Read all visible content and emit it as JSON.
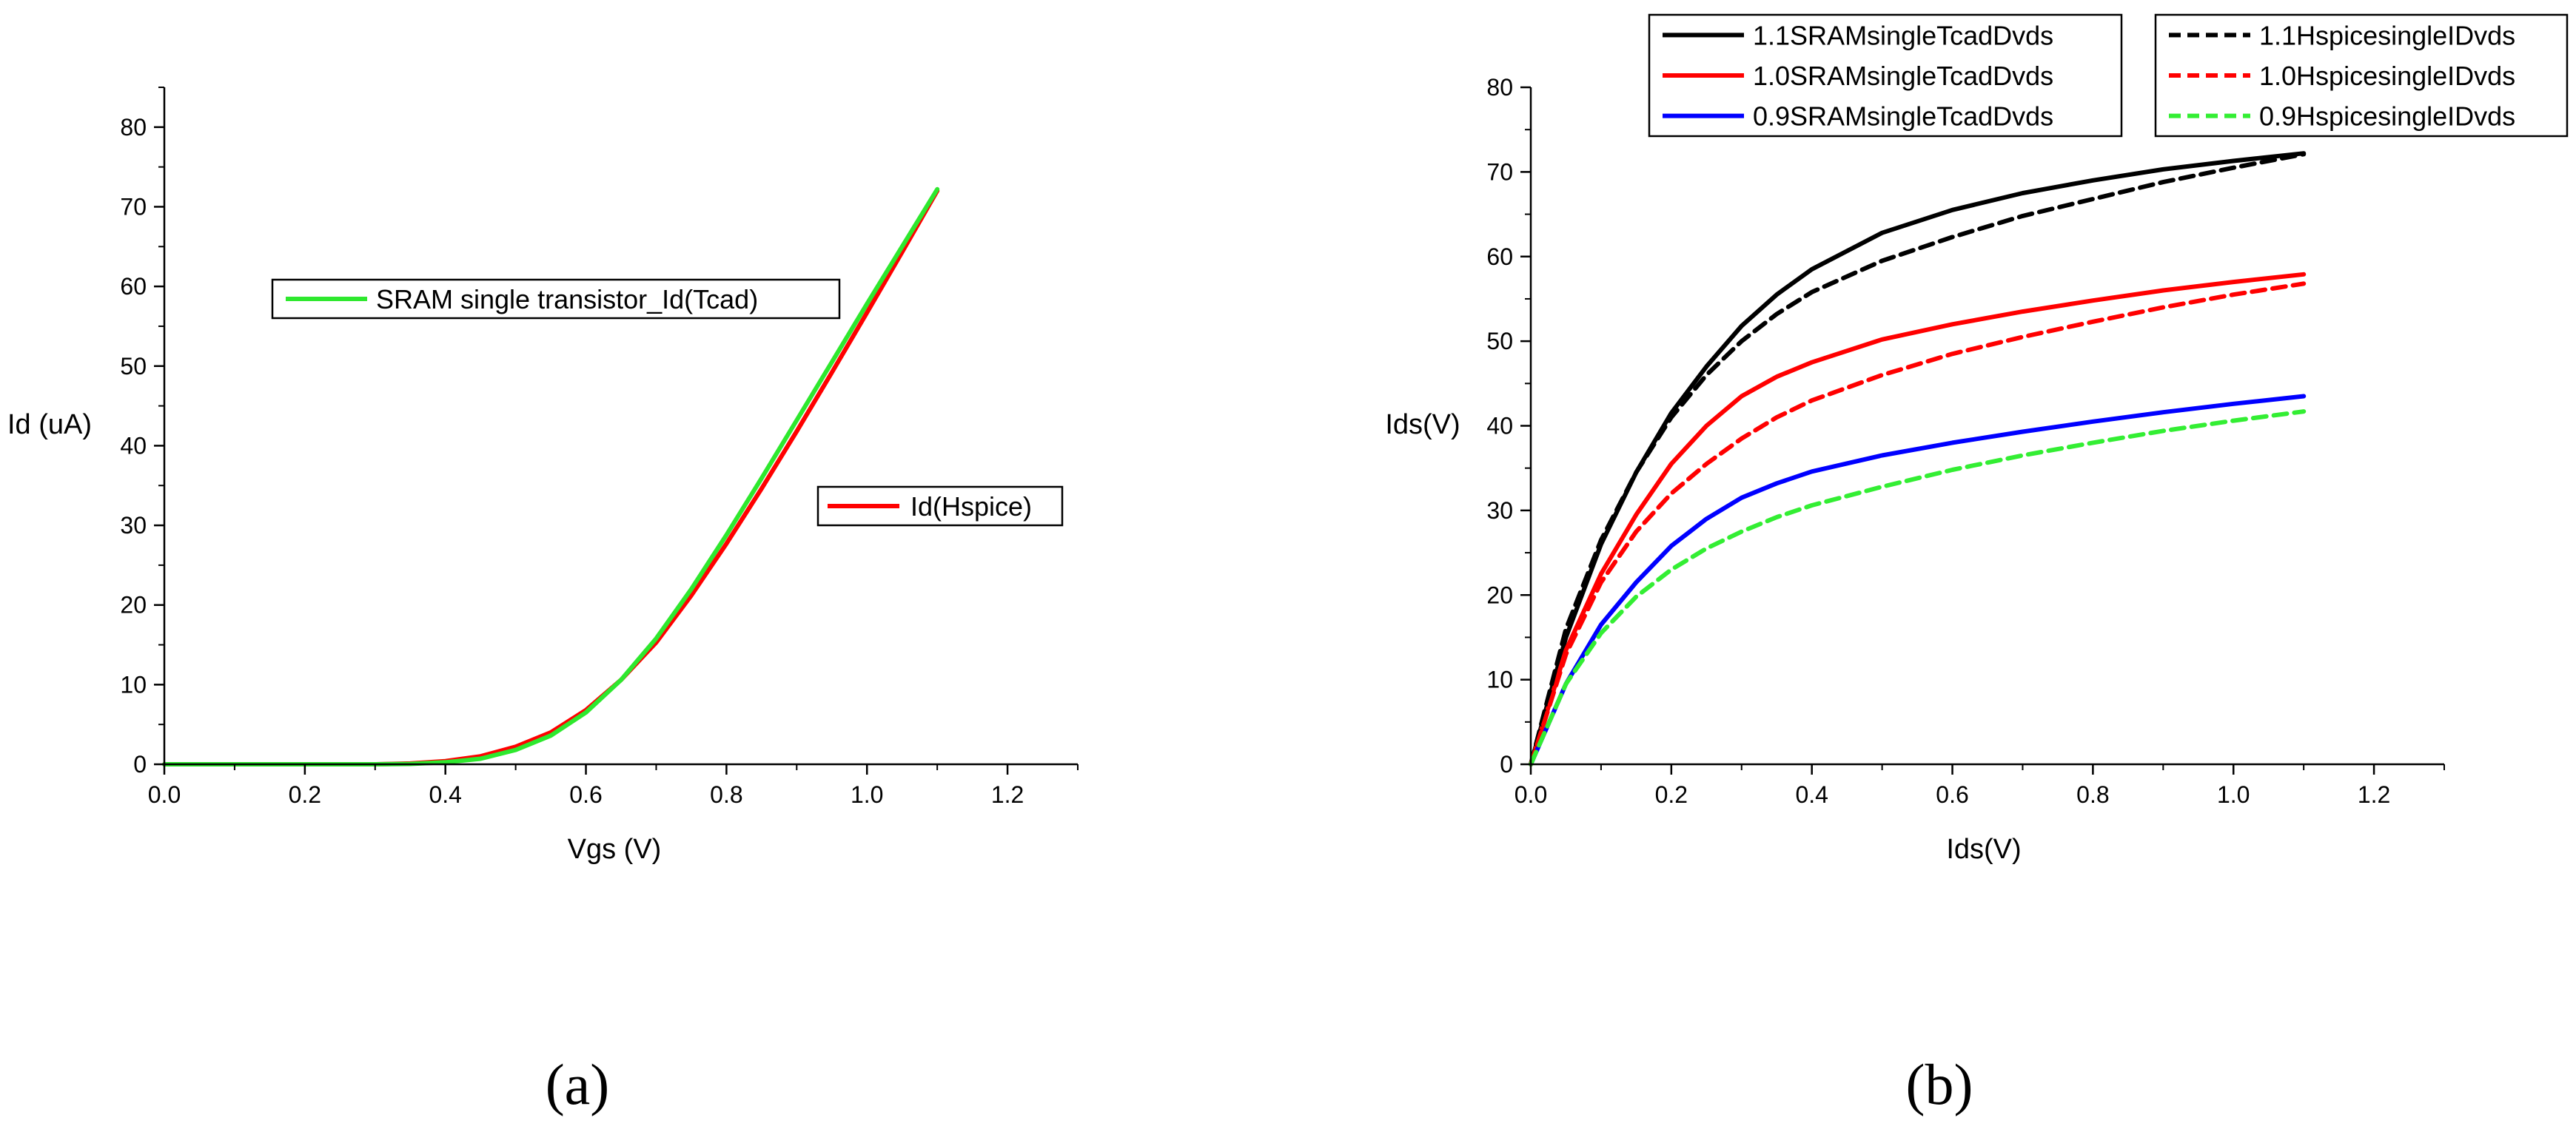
{
  "chart_data": [
    {
      "type": "line",
      "panel_label": "(a)",
      "xlabel": "Vgs (V)",
      "ylabel": "Id (uA)",
      "xlim": [
        0.0,
        1.3
      ],
      "ylim": [
        0,
        85
      ],
      "xticks": [
        "0.0",
        "0.2",
        "0.4",
        "0.6",
        "0.8",
        "1.0",
        "1.2"
      ],
      "xtick_values": [
        0,
        0.2,
        0.4,
        0.6,
        0.8,
        1.0,
        1.2
      ],
      "yticks": [
        "0",
        "10",
        "20",
        "30",
        "40",
        "50",
        "60",
        "70",
        "80"
      ],
      "ytick_values": [
        0,
        10,
        20,
        30,
        40,
        50,
        60,
        70,
        80
      ],
      "series": [
        {
          "name": "Id(Hspice)",
          "color": "#ff0000",
          "dash": "solid",
          "x": [
            0.0,
            0.3,
            0.35,
            0.4,
            0.45,
            0.5,
            0.55,
            0.6,
            0.65,
            0.7,
            0.75,
            0.8,
            0.85,
            0.9,
            0.95,
            1.0,
            1.05,
            1.1
          ],
          "y": [
            0,
            0,
            0.1,
            0.4,
            1.0,
            2.2,
            4.0,
            6.8,
            10.6,
            15.3,
            21.2,
            27.7,
            34.6,
            41.8,
            49.2,
            56.7,
            64.3,
            72.0
          ]
        },
        {
          "name": "SRAM single transistor_Id(Tcad)",
          "color": "#2ee82e",
          "dash": "solid",
          "x": [
            0.0,
            0.3,
            0.35,
            0.4,
            0.45,
            0.5,
            0.55,
            0.6,
            0.65,
            0.7,
            0.75,
            0.8,
            0.85,
            0.9,
            0.95,
            1.0,
            1.05,
            1.1
          ],
          "y": [
            0,
            0,
            0.05,
            0.25,
            0.7,
            1.8,
            3.6,
            6.5,
            10.6,
            15.8,
            22.0,
            28.8,
            35.9,
            43.2,
            50.5,
            57.8,
            65.0,
            72.2
          ]
        }
      ],
      "legend": [
        {
          "label": "SRAM single transistor_Id(Tcad)",
          "color": "#2ee82e"
        },
        {
          "label": "Id(Hspice)",
          "color": "#ff0000"
        }
      ]
    },
    {
      "type": "line",
      "panel_label": "(b)",
      "xlabel": "Ids(V)",
      "ylabel": "Ids(V)",
      "xlim": [
        0.0,
        1.3
      ],
      "ylim": [
        0,
        80
      ],
      "xticks": [
        "0.0",
        "0.2",
        "0.4",
        "0.6",
        "0.8",
        "1.0",
        "1.2"
      ],
      "xtick_values": [
        0,
        0.2,
        0.4,
        0.6,
        0.8,
        1.0,
        1.2
      ],
      "yticks": [
        "0",
        "10",
        "20",
        "30",
        "40",
        "50",
        "60",
        "70",
        "80"
      ],
      "ytick_values": [
        0,
        10,
        20,
        30,
        40,
        50,
        60,
        70,
        80
      ],
      "series": [
        {
          "name": "1.1SRAMsingleTcadDvds",
          "color": "#000000",
          "dash": "solid",
          "x": [
            0,
            0.05,
            0.1,
            0.15,
            0.2,
            0.25,
            0.3,
            0.35,
            0.4,
            0.5,
            0.6,
            0.7,
            0.8,
            0.9,
            1.0,
            1.1
          ],
          "y": [
            0,
            15.0,
            26.0,
            34.5,
            41.5,
            47.0,
            51.8,
            55.5,
            58.5,
            62.8,
            65.5,
            67.5,
            69.0,
            70.3,
            71.3,
            72.2
          ]
        },
        {
          "name": "1.0SRAMsingleTcadDvds",
          "color": "#ff0000",
          "dash": "solid",
          "x": [
            0,
            0.05,
            0.1,
            0.15,
            0.2,
            0.25,
            0.3,
            0.35,
            0.4,
            0.5,
            0.6,
            0.7,
            0.8,
            0.9,
            1.0,
            1.1
          ],
          "y": [
            0,
            13.5,
            22.5,
            29.5,
            35.5,
            40.0,
            43.5,
            45.8,
            47.5,
            50.2,
            52.0,
            53.5,
            54.8,
            56.0,
            57.0,
            57.9
          ]
        },
        {
          "name": "0.9SRAMsingleTcadDvds",
          "color": "#0000ff",
          "dash": "solid",
          "x": [
            0,
            0.05,
            0.1,
            0.15,
            0.2,
            0.25,
            0.3,
            0.35,
            0.4,
            0.5,
            0.6,
            0.7,
            0.8,
            0.9,
            1.0,
            1.1
          ],
          "y": [
            0,
            9.5,
            16.5,
            21.5,
            25.8,
            29.0,
            31.5,
            33.2,
            34.6,
            36.5,
            38.0,
            39.3,
            40.5,
            41.6,
            42.6,
            43.5
          ]
        },
        {
          "name": "1.1HspicesingleIDvds",
          "color": "#000000",
          "dash": "dashed",
          "x": [
            0,
            0.05,
            0.1,
            0.15,
            0.2,
            0.25,
            0.3,
            0.35,
            0.4,
            0.5,
            0.6,
            0.7,
            0.8,
            0.9,
            1.0,
            1.1
          ],
          "y": [
            0,
            16.0,
            26.5,
            34.5,
            41.0,
            46.0,
            50.0,
            53.2,
            55.8,
            59.5,
            62.3,
            64.8,
            66.8,
            68.8,
            70.5,
            72.1
          ]
        },
        {
          "name": "1.0HspicesingleIDvds",
          "color": "#ff0000",
          "dash": "dashed",
          "x": [
            0,
            0.05,
            0.1,
            0.15,
            0.2,
            0.25,
            0.3,
            0.35,
            0.4,
            0.5,
            0.6,
            0.7,
            0.8,
            0.9,
            1.0,
            1.1
          ],
          "y": [
            0,
            13.0,
            21.5,
            27.5,
            32.0,
            35.5,
            38.5,
            41.0,
            43.0,
            46.0,
            48.5,
            50.5,
            52.3,
            54.0,
            55.5,
            56.8
          ]
        },
        {
          "name": "0.9HspicesingleIDvds",
          "color": "#33ee33",
          "dash": "dashed",
          "x": [
            0,
            0.05,
            0.1,
            0.15,
            0.2,
            0.25,
            0.3,
            0.35,
            0.4,
            0.5,
            0.6,
            0.7,
            0.8,
            0.9,
            1.0,
            1.1
          ],
          "y": [
            0,
            9.5,
            15.5,
            19.8,
            23.0,
            25.5,
            27.5,
            29.2,
            30.6,
            32.8,
            34.8,
            36.5,
            38.0,
            39.4,
            40.6,
            41.7
          ]
        }
      ],
      "legend_left": [
        {
          "label": "1.1SRAMsingleTcadDvds",
          "color": "#000000",
          "dash": "solid"
        },
        {
          "label": "1.0SRAMsingleTcadDvds",
          "color": "#ff0000",
          "dash": "solid"
        },
        {
          "label": "0.9SRAMsingleTcadDvds",
          "color": "#0000ff",
          "dash": "solid"
        }
      ],
      "legend_right": [
        {
          "label": "1.1HspicesingleIDvds",
          "color": "#000000",
          "dash": "dashed"
        },
        {
          "label": "1.0HspicesingleIDvds",
          "color": "#ff0000",
          "dash": "dashed"
        },
        {
          "label": "0.9HspicesingleIDvds",
          "color": "#33ee33",
          "dash": "dashed"
        }
      ]
    }
  ]
}
